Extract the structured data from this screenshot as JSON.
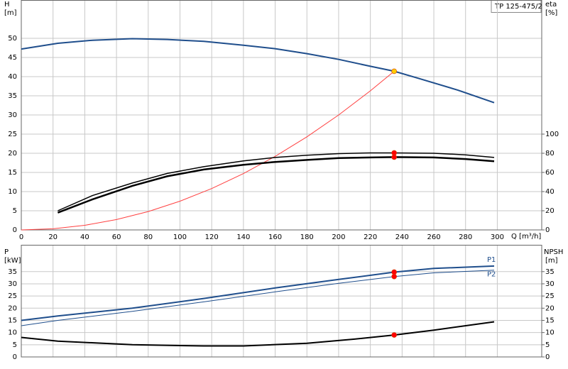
{
  "chart_data": [
    {
      "type": "line",
      "y_label": "H",
      "y_unit": "[m]",
      "y2_label": "eta",
      "y2_unit": "[%]",
      "x_label": "Q [m³/h]",
      "legend_text": "TP 125-475/2",
      "xlim": [
        0,
        328
      ],
      "xticks": [
        0,
        20,
        40,
        60,
        80,
        100,
        120,
        140,
        160,
        180,
        200,
        220,
        240,
        260,
        280,
        300
      ],
      "show_xtick_labels": true,
      "ylim": [
        0,
        60
      ],
      "yticks": [
        0,
        5,
        10,
        15,
        20,
        25,
        30,
        35,
        40,
        45,
        50
      ],
      "y2lim": [
        0,
        240
      ],
      "y2ticks": [
        0,
        20,
        40,
        60,
        80,
        100
      ],
      "grid": true,
      "series": [
        {
          "color": "#1f4e8c",
          "width": 2,
          "x": [
            0,
            23,
            45,
            70,
            92,
            115,
            140,
            160,
            180,
            200,
            220,
            235,
            250,
            275,
            298
          ],
          "values": [
            47.2,
            48.7,
            49.5,
            49.9,
            49.7,
            49.2,
            48.2,
            47.3,
            46,
            44.5,
            42.7,
            41.4,
            39.6,
            36.5,
            33.2
          ]
        },
        {
          "color": "#ff4040",
          "width": 1,
          "x": [
            0,
            20,
            40,
            60,
            80,
            100,
            120,
            140,
            160,
            180,
            200,
            220,
            235
          ],
          "values": [
            0,
            0.3,
            1.2,
            2.7,
            4.8,
            7.5,
            10.8,
            14.7,
            19.2,
            24.3,
            30,
            36.3,
            41.4
          ]
        },
        {
          "color": "#000000",
          "width": 1.5,
          "axis": "y2",
          "x": [
            23,
            45,
            70,
            92,
            115,
            140,
            160,
            180,
            200,
            220,
            235,
            260,
            280,
            298
          ],
          "values": [
            20,
            36,
            49,
            59,
            66,
            72,
            75.6,
            78,
            79.6,
            80.4,
            80.4,
            80,
            78.4,
            75.6
          ]
        },
        {
          "color": "#000000",
          "width": 2.5,
          "axis": "y2",
          "x": [
            23,
            45,
            70,
            92,
            115,
            140,
            160,
            180,
            200,
            220,
            235,
            260,
            280,
            298
          ],
          "values": [
            18,
            32,
            46,
            56,
            63,
            68,
            71,
            73,
            75,
            75.6,
            76,
            75.6,
            74,
            71.6
          ]
        },
        {
          "style": "point",
          "color": "#ffcc00",
          "x": [
            235
          ],
          "values": [
            41.4
          ]
        },
        {
          "style": "point",
          "color": "#ff0000",
          "axis": "y2",
          "x": [
            235,
            235
          ],
          "values": [
            80.4,
            76
          ]
        }
      ]
    },
    {
      "type": "line",
      "y_label": "P",
      "y_unit": "[kW]",
      "y2_label": "NPSH",
      "y2_unit": "[m]",
      "xlim": [
        0,
        328
      ],
      "xticks": [
        0,
        20,
        40,
        60,
        80,
        100,
        120,
        140,
        160,
        180,
        200,
        220,
        240,
        260,
        280,
        300
      ],
      "show_xtick_labels": false,
      "ylim": [
        0,
        46
      ],
      "yticks": [
        0,
        5,
        10,
        15,
        20,
        25,
        30,
        35
      ],
      "y2lim": [
        0,
        46
      ],
      "y2ticks": [
        0,
        5,
        10,
        15,
        20,
        25,
        30,
        35
      ],
      "grid": true,
      "series": [
        {
          "name": "P1",
          "label_pos": "above",
          "color": "#1f4e8c",
          "width": 2,
          "x": [
            0,
            23,
            70,
            115,
            160,
            200,
            235,
            260,
            298
          ],
          "values": [
            15,
            16.8,
            20,
            24,
            28.3,
            31.8,
            34.8,
            36.3,
            37.3
          ]
        },
        {
          "name": "P2",
          "label_pos": "below",
          "color": "#1f4e8c",
          "width": 1,
          "x": [
            0,
            23,
            70,
            115,
            160,
            200,
            235,
            260,
            298
          ],
          "values": [
            12.8,
            15,
            18.7,
            22.6,
            26.7,
            30.2,
            33,
            34.5,
            35.6
          ]
        },
        {
          "color": "#000000",
          "width": 2,
          "axis": "y2",
          "x": [
            0,
            23,
            70,
            115,
            140,
            180,
            210,
            235,
            260,
            298
          ],
          "values": [
            8,
            6.5,
            5,
            4.5,
            4.5,
            5.6,
            7.3,
            9,
            11,
            14.4
          ]
        },
        {
          "style": "point",
          "color": "#ff0000",
          "x": [
            235,
            235
          ],
          "values": [
            34.8,
            33
          ]
        },
        {
          "style": "point",
          "color": "#ff0000",
          "axis": "y2",
          "x": [
            235
          ],
          "values": [
            9
          ]
        }
      ]
    }
  ]
}
